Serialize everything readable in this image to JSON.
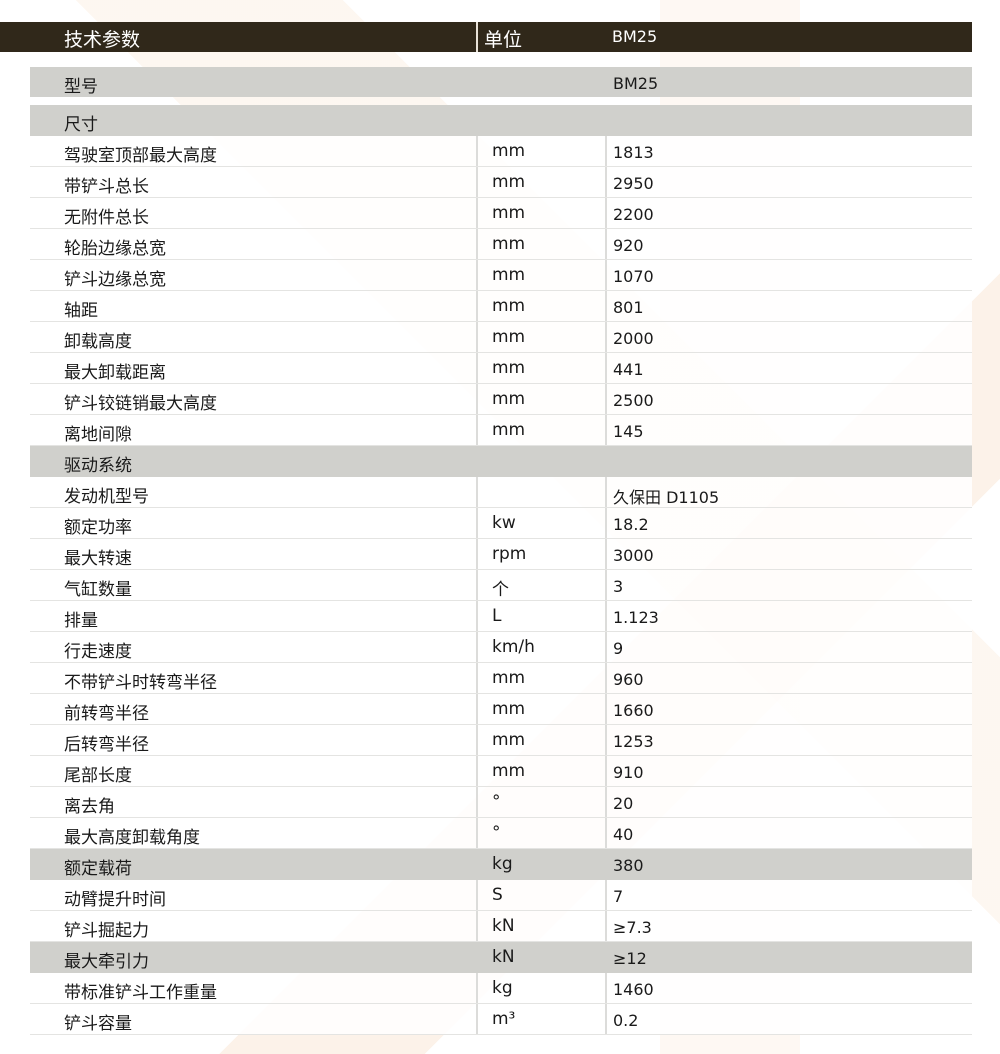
{
  "header": {
    "param": "技术参数",
    "unit": "单位",
    "model": "BM25"
  },
  "rows": [
    {
      "label": "型号",
      "unit": "",
      "value": "BM25",
      "type": "model"
    },
    {
      "label": "尺寸",
      "unit": "",
      "value": "",
      "type": "section"
    },
    {
      "label": "驾驶室顶部最大高度",
      "unit": "mm",
      "value": "1813"
    },
    {
      "label": "带铲斗总长",
      "unit": "mm",
      "value": "2950"
    },
    {
      "label": "无附件总长",
      "unit": "mm",
      "value": "2200"
    },
    {
      "label": "轮胎边缘总宽",
      "unit": "mm",
      "value": "920"
    },
    {
      "label": "铲斗边缘总宽",
      "unit": "mm",
      "value": "1070"
    },
    {
      "label": "轴距",
      "unit": "mm",
      "value": "801"
    },
    {
      "label": "卸载高度",
      "unit": "mm",
      "value": "2000"
    },
    {
      "label": "最大卸载距离",
      "unit": "mm",
      "value": "441"
    },
    {
      "label": "铲斗铰链销最大高度",
      "unit": "mm",
      "value": "2500"
    },
    {
      "label": "离地间隙",
      "unit": "mm",
      "value": "145"
    },
    {
      "label": "驱动系统",
      "unit": "",
      "value": "",
      "type": "section"
    },
    {
      "label": "发动机型号",
      "unit": "",
      "value": "久保田 D1105"
    },
    {
      "label": "额定功率",
      "unit": "kw",
      "value": "18.2"
    },
    {
      "label": "最大转速",
      "unit": "rpm",
      "value": "3000"
    },
    {
      "label": "气缸数量",
      "unit": "个",
      "value": "3"
    },
    {
      "label": "排量",
      "unit": "L",
      "value": "1.123"
    },
    {
      "label": "行走速度",
      "unit": "km/h",
      "value": "9"
    },
    {
      "label": "不带铲斗时转弯半径",
      "unit": "mm",
      "value": "960"
    },
    {
      "label": "前转弯半径",
      "unit": "mm",
      "value": "1660"
    },
    {
      "label": "后转弯半径",
      "unit": "mm",
      "value": "1253"
    },
    {
      "label": "尾部长度",
      "unit": "mm",
      "value": "910"
    },
    {
      "label": "离去角",
      "unit": "°",
      "value": "20"
    },
    {
      "label": "最大高度卸载角度",
      "unit": "°",
      "value": "40"
    },
    {
      "label": "额定载荷",
      "unit": "kg",
      "value": "380",
      "type": "gray"
    },
    {
      "label": "动臂提升时间",
      "unit": "S",
      "value": "7"
    },
    {
      "label": "铲斗掘起力",
      "unit": "kN",
      "value": "≥7.3"
    },
    {
      "label": "最大牵引力",
      "unit": "kN",
      "value": "≥12",
      "type": "gray"
    },
    {
      "label": "带标准铲斗工作重量",
      "unit": "kg",
      "value": "1460"
    },
    {
      "label": "铲斗容量",
      "unit": "m³",
      "value": "0.2"
    }
  ]
}
